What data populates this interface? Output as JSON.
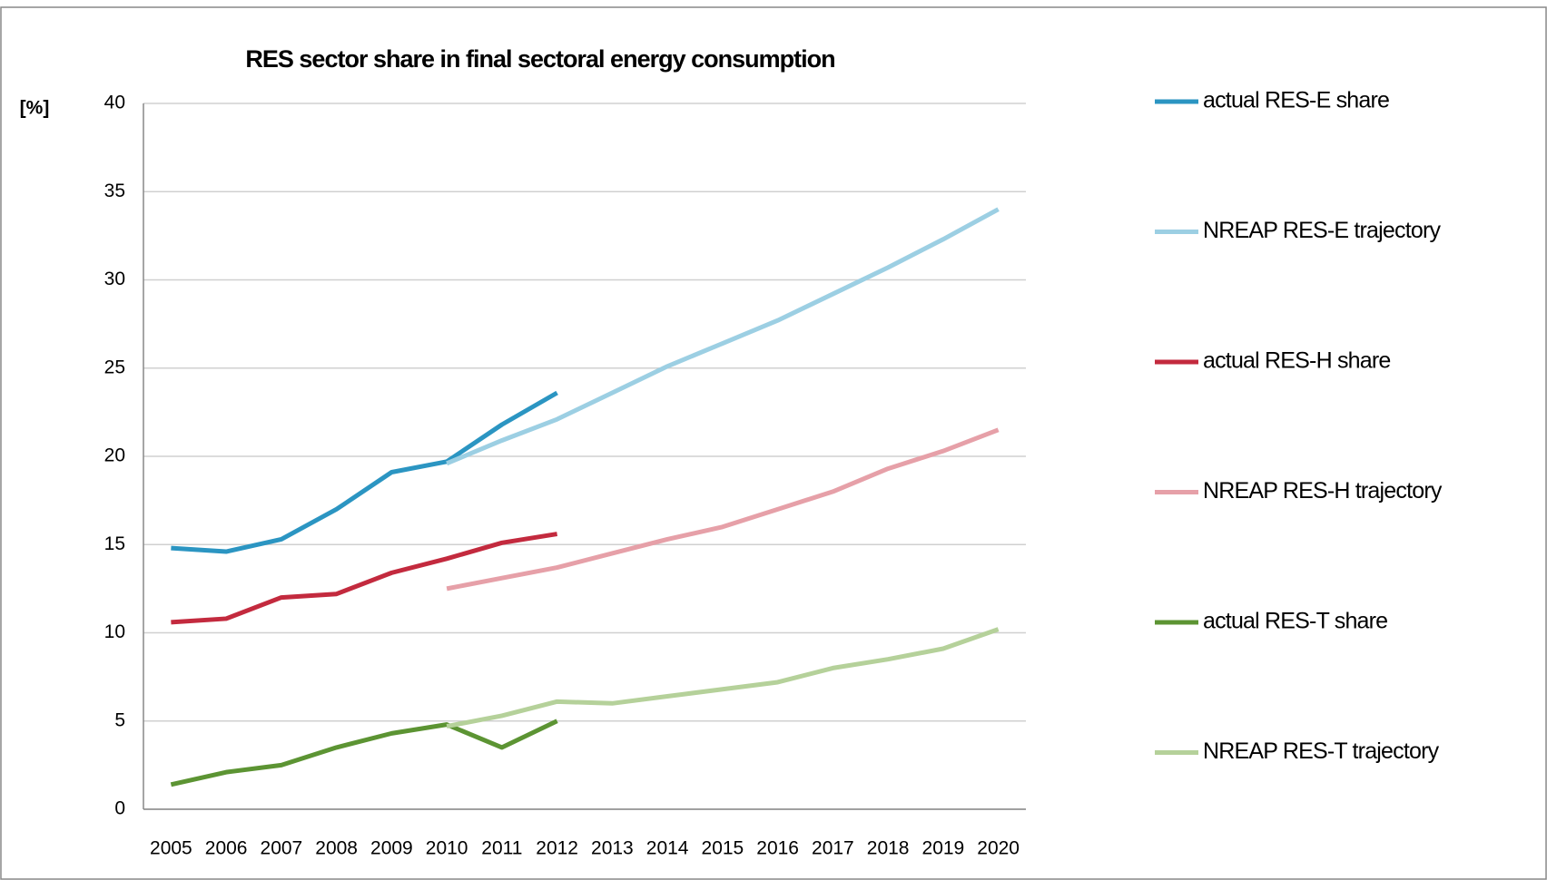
{
  "chart_data": {
    "type": "line",
    "title": "RES sector share in final sectoral energy consumption",
    "y_label": "[%]",
    "categories": [
      "2005",
      "2006",
      "2007",
      "2008",
      "2009",
      "2010",
      "2011",
      "2012",
      "2013",
      "2014",
      "2015",
      "2016",
      "2017",
      "2018",
      "2019",
      "2020"
    ],
    "series": [
      {
        "name": "actual RES-E share",
        "color": "#2b95c2",
        "values": [
          14.8,
          14.6,
          15.3,
          17.0,
          19.1,
          19.7,
          21.8,
          23.6,
          null,
          null,
          null,
          null,
          null,
          null,
          null,
          null
        ]
      },
      {
        "name": "NREAP RES-E trajectory",
        "color": "#9ccfe3",
        "values": [
          null,
          null,
          null,
          null,
          null,
          19.6,
          20.9,
          22.1,
          23.6,
          25.1,
          26.4,
          27.7,
          29.2,
          30.7,
          32.3,
          34.0
        ]
      },
      {
        "name": "actual RES-H share",
        "color": "#c32a3e",
        "values": [
          10.6,
          10.8,
          12.0,
          12.2,
          13.4,
          14.2,
          15.1,
          15.6,
          null,
          null,
          null,
          null,
          null,
          null,
          null,
          null
        ]
      },
      {
        "name": "NREAP RES-H trajectory",
        "color": "#e6a0a8",
        "values": [
          null,
          null,
          null,
          null,
          null,
          12.5,
          13.1,
          13.7,
          14.5,
          15.3,
          16.0,
          17.0,
          18.0,
          19.3,
          20.3,
          21.5
        ]
      },
      {
        "name": "actual RES-T share",
        "color": "#5c9433",
        "values": [
          1.4,
          2.1,
          2.5,
          3.5,
          4.3,
          4.8,
          3.5,
          5.0,
          null,
          null,
          null,
          null,
          null,
          null,
          null,
          null
        ]
      },
      {
        "name": "NREAP RES-T trajectory",
        "color": "#b5d19a",
        "values": [
          null,
          null,
          null,
          null,
          null,
          4.7,
          5.3,
          6.1,
          6.0,
          6.4,
          6.8,
          7.2,
          8.0,
          8.5,
          9.1,
          10.2
        ]
      }
    ],
    "ylim": [
      0,
      40
    ],
    "yticks": [
      0,
      5,
      10,
      15,
      20,
      25,
      30,
      35,
      40
    ],
    "grid": true,
    "legend": "right"
  }
}
